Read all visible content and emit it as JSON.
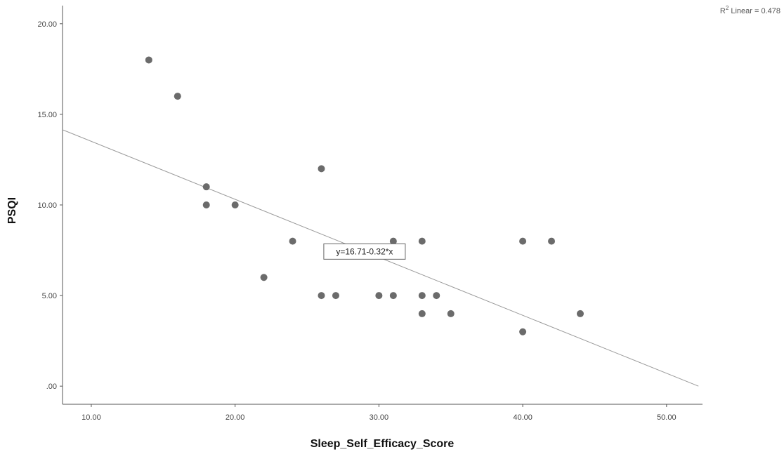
{
  "chart_data": {
    "type": "scatter",
    "title": "",
    "xlabel": "Sleep_Self_Efficacy_Score",
    "ylabel": "PSQI",
    "xlim": [
      8,
      52.5
    ],
    "ylim": [
      -1,
      21
    ],
    "x_ticks": [
      10,
      20,
      30,
      40,
      50
    ],
    "y_ticks": [
      0,
      5,
      10,
      15,
      20
    ],
    "x_tick_labels": [
      "10.00",
      "20.00",
      "30.00",
      "40.00",
      "50.00"
    ],
    "y_tick_labels": [
      ".00",
      "5.00",
      "10.00",
      "15.00",
      "20.00"
    ],
    "grid": false,
    "point_color": "#6b6b6b",
    "line_color": "#9a9a9a",
    "points": [
      {
        "x": 14,
        "y": 18
      },
      {
        "x": 16,
        "y": 16
      },
      {
        "x": 18,
        "y": 11
      },
      {
        "x": 18,
        "y": 10
      },
      {
        "x": 20,
        "y": 10
      },
      {
        "x": 22,
        "y": 6
      },
      {
        "x": 24,
        "y": 8
      },
      {
        "x": 26,
        "y": 12
      },
      {
        "x": 26,
        "y": 5
      },
      {
        "x": 27,
        "y": 5
      },
      {
        "x": 30,
        "y": 5
      },
      {
        "x": 31,
        "y": 8
      },
      {
        "x": 31,
        "y": 5
      },
      {
        "x": 33,
        "y": 8
      },
      {
        "x": 33,
        "y": 5
      },
      {
        "x": 33,
        "y": 4
      },
      {
        "x": 34,
        "y": 5
      },
      {
        "x": 35,
        "y": 4
      },
      {
        "x": 40,
        "y": 8
      },
      {
        "x": 40,
        "y": 3
      },
      {
        "x": 42,
        "y": 8
      },
      {
        "x": 44,
        "y": 4
      }
    ],
    "fit_line": {
      "intercept": 16.71,
      "slope": -0.32
    },
    "fit_equation_label": "y=16.71-0.32*x",
    "r2_prefix": "R",
    "r2_superscript": "2",
    "r2_suffix": " Linear = 0.478"
  }
}
